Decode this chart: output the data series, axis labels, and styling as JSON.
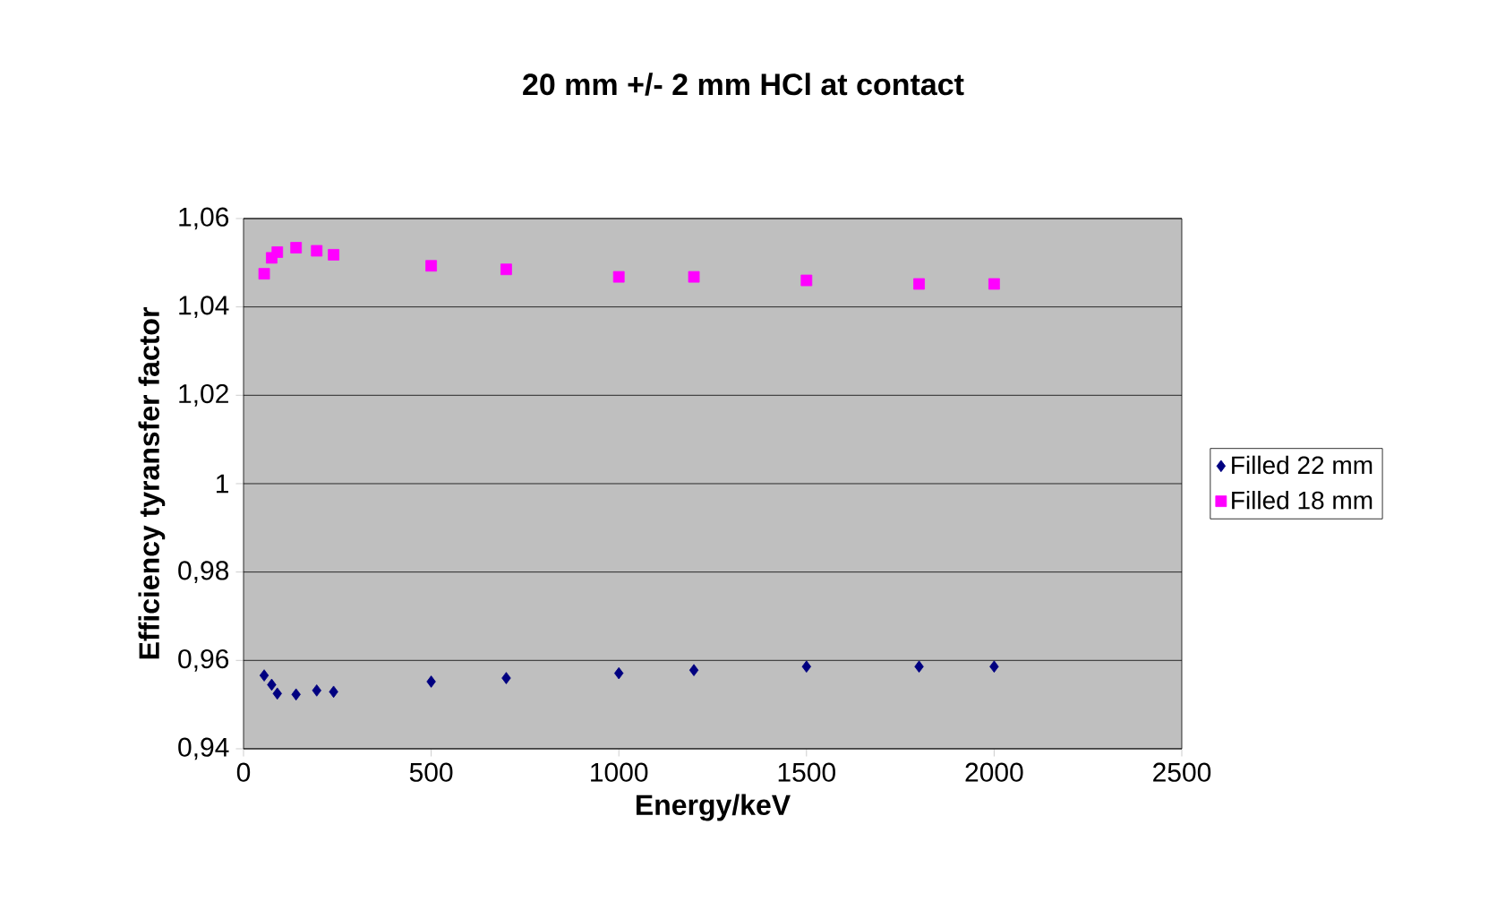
{
  "chart_data": {
    "type": "scatter",
    "title": "20 mm +/- 2 mm HCl at contact",
    "xlabel": "Energy/keV",
    "ylabel": "Efficiency tyransfer factor",
    "xlim": [
      0,
      2500
    ],
    "xticks": [
      0,
      500,
      1000,
      1500,
      2000,
      2500
    ],
    "ylim": [
      0.94,
      1.06
    ],
    "yticks": [
      {
        "value": 0.94,
        "label": "0,94"
      },
      {
        "value": 0.96,
        "label": "0,96"
      },
      {
        "value": 0.98,
        "label": "0,98"
      },
      {
        "value": 1,
        "label": "1"
      },
      {
        "value": 1.02,
        "label": "1,02"
      },
      {
        "value": 1.04,
        "label": "1,04"
      },
      {
        "value": 1.06,
        "label": "1,06"
      }
    ],
    "grid": "y",
    "legend": "right",
    "series": [
      {
        "name": "Filled 22 mm",
        "color": "#000080",
        "marker": "diamond",
        "x": [
          55,
          75,
          90,
          140,
          195,
          240,
          500,
          700,
          1000,
          1200,
          1500,
          1800,
          2000
        ],
        "values": [
          0.9566,
          0.9545,
          0.9525,
          0.9523,
          0.9532,
          0.9529,
          0.9552,
          0.956,
          0.9571,
          0.9578,
          0.9586,
          0.9586,
          0.9586
        ]
      },
      {
        "name": "Filled 18 mm",
        "color": "#ff00ff",
        "marker": "square",
        "x": [
          55,
          75,
          90,
          140,
          195,
          240,
          500,
          700,
          1000,
          1200,
          1500,
          1800,
          2000
        ],
        "values": [
          1.0475,
          1.0511,
          1.0524,
          1.0534,
          1.0527,
          1.0518,
          1.0493,
          1.0485,
          1.0468,
          1.0468,
          1.046,
          1.0452,
          1.0452
        ]
      }
    ]
  }
}
